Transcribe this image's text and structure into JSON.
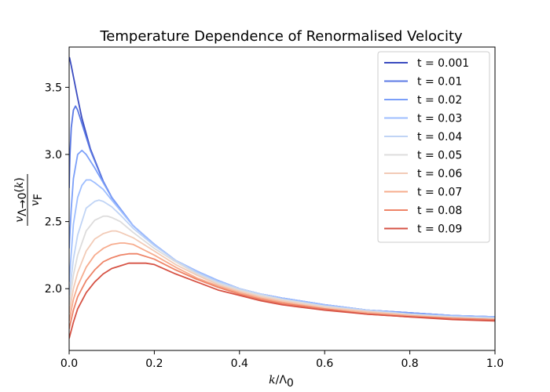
{
  "chart_data": {
    "type": "line",
    "title": "Temperature Dependence of Renormalised Velocity",
    "xlabel": "k/Λ₀",
    "ylabel": "v_{Λ→0}(k) / v_F",
    "xlim": [
      0.0,
      1.0
    ],
    "ylim": [
      1.54,
      3.8
    ],
    "xticks": [
      0.0,
      0.2,
      0.4,
      0.6,
      0.8,
      1.0
    ],
    "xtick_labels": [
      "0.0",
      "0.2",
      "0.4",
      "0.6",
      "0.8",
      "1.0"
    ],
    "yticks": [
      2.0,
      2.5,
      3.0,
      3.5
    ],
    "ytick_labels": [
      "2.0",
      "2.5",
      "3.0",
      "3.5"
    ],
    "grid": false,
    "legend_position": "top-right",
    "series": [
      {
        "name": "t = 0.001",
        "color": "#3b4cc0",
        "x": [
          0.0,
          0.001,
          0.005,
          0.01,
          0.02,
          0.03,
          0.05,
          0.08,
          0.1,
          0.15,
          0.2,
          0.25,
          0.3,
          0.35,
          0.4,
          0.45,
          0.5,
          0.6,
          0.7,
          0.8,
          0.9,
          1.0
        ],
        "y": [
          3.72,
          3.72,
          3.66,
          3.58,
          3.42,
          3.27,
          3.04,
          2.8,
          2.68,
          2.47,
          2.33,
          2.21,
          2.13,
          2.06,
          2.0,
          1.96,
          1.93,
          1.88,
          1.84,
          1.82,
          1.8,
          1.79
        ]
      },
      {
        "name": "t = 0.01",
        "color": "#5a78e4",
        "x": [
          0.0,
          0.002,
          0.005,
          0.01,
          0.015,
          0.02,
          0.025,
          0.03,
          0.05,
          0.08,
          0.1,
          0.15,
          0.2,
          0.25,
          0.3,
          0.35,
          0.4,
          0.45,
          0.5,
          0.6,
          0.7,
          0.8,
          0.9,
          1.0
        ],
        "y": [
          2.75,
          3.0,
          3.2,
          3.33,
          3.36,
          3.33,
          3.28,
          3.23,
          3.03,
          2.8,
          2.68,
          2.47,
          2.33,
          2.21,
          2.13,
          2.06,
          2.0,
          1.96,
          1.93,
          1.88,
          1.84,
          1.82,
          1.8,
          1.79
        ]
      },
      {
        "name": "t = 0.02",
        "color": "#7b9ff9",
        "x": [
          0.0,
          0.005,
          0.01,
          0.02,
          0.03,
          0.04,
          0.05,
          0.06,
          0.08,
          0.1,
          0.15,
          0.2,
          0.25,
          0.3,
          0.35,
          0.4,
          0.45,
          0.5,
          0.6,
          0.7,
          0.8,
          0.9,
          1.0
        ],
        "y": [
          2.3,
          2.6,
          2.82,
          3.0,
          3.03,
          3.0,
          2.95,
          2.9,
          2.79,
          2.68,
          2.47,
          2.33,
          2.21,
          2.13,
          2.06,
          2.0,
          1.96,
          1.93,
          1.88,
          1.84,
          1.82,
          1.8,
          1.79
        ]
      },
      {
        "name": "t = 0.03",
        "color": "#9ebeff",
        "x": [
          0.0,
          0.01,
          0.02,
          0.03,
          0.04,
          0.05,
          0.06,
          0.08,
          0.1,
          0.15,
          0.2,
          0.25,
          0.3,
          0.35,
          0.4,
          0.45,
          0.5,
          0.6,
          0.7,
          0.8,
          0.9,
          1.0
        ],
        "y": [
          2.05,
          2.48,
          2.68,
          2.77,
          2.81,
          2.81,
          2.79,
          2.74,
          2.66,
          2.47,
          2.33,
          2.21,
          2.13,
          2.06,
          2.0,
          1.96,
          1.93,
          1.88,
          1.84,
          1.81,
          1.8,
          1.79
        ]
      },
      {
        "name": "t = 0.04",
        "color": "#c0d4f5",
        "x": [
          0.0,
          0.01,
          0.02,
          0.04,
          0.06,
          0.07,
          0.08,
          0.1,
          0.12,
          0.15,
          0.2,
          0.25,
          0.3,
          0.35,
          0.4,
          0.45,
          0.5,
          0.6,
          0.7,
          0.8,
          0.9,
          1.0
        ],
        "y": [
          1.95,
          2.22,
          2.4,
          2.6,
          2.65,
          2.66,
          2.65,
          2.61,
          2.55,
          2.45,
          2.32,
          2.21,
          2.12,
          2.05,
          2.0,
          1.96,
          1.92,
          1.87,
          1.84,
          1.81,
          1.79,
          1.78
        ]
      },
      {
        "name": "t = 0.05",
        "color": "#dddcdc",
        "x": [
          0.0,
          0.01,
          0.02,
          0.04,
          0.06,
          0.08,
          0.09,
          0.1,
          0.12,
          0.15,
          0.2,
          0.25,
          0.3,
          0.35,
          0.4,
          0.45,
          0.5,
          0.6,
          0.7,
          0.8,
          0.9,
          1.0
        ],
        "y": [
          1.88,
          2.1,
          2.25,
          2.43,
          2.51,
          2.54,
          2.54,
          2.53,
          2.5,
          2.42,
          2.3,
          2.2,
          2.11,
          2.04,
          1.99,
          1.95,
          1.92,
          1.87,
          1.83,
          1.81,
          1.79,
          1.78
        ]
      },
      {
        "name": "t = 0.06",
        "color": "#f2cbb7",
        "x": [
          0.0,
          0.01,
          0.02,
          0.04,
          0.06,
          0.08,
          0.1,
          0.11,
          0.12,
          0.15,
          0.2,
          0.25,
          0.3,
          0.35,
          0.4,
          0.45,
          0.5,
          0.6,
          0.7,
          0.8,
          0.9,
          1.0
        ],
        "y": [
          1.82,
          2.0,
          2.12,
          2.28,
          2.37,
          2.41,
          2.43,
          2.43,
          2.42,
          2.38,
          2.28,
          2.18,
          2.1,
          2.03,
          1.98,
          1.94,
          1.91,
          1.86,
          1.83,
          1.8,
          1.78,
          1.77
        ]
      },
      {
        "name": "t = 0.07",
        "color": "#f7ac8e",
        "x": [
          0.0,
          0.01,
          0.02,
          0.04,
          0.06,
          0.08,
          0.1,
          0.12,
          0.13,
          0.15,
          0.2,
          0.25,
          0.3,
          0.35,
          0.4,
          0.45,
          0.5,
          0.6,
          0.7,
          0.8,
          0.9,
          1.0
        ],
        "y": [
          1.76,
          1.92,
          2.02,
          2.16,
          2.25,
          2.3,
          2.33,
          2.34,
          2.34,
          2.33,
          2.25,
          2.16,
          2.08,
          2.02,
          1.97,
          1.93,
          1.9,
          1.85,
          1.82,
          1.8,
          1.78,
          1.77
        ]
      },
      {
        "name": "t = 0.08",
        "color": "#ee8468",
        "x": [
          0.0,
          0.01,
          0.02,
          0.04,
          0.06,
          0.08,
          0.1,
          0.12,
          0.14,
          0.16,
          0.2,
          0.25,
          0.3,
          0.35,
          0.4,
          0.45,
          0.5,
          0.6,
          0.7,
          0.8,
          0.9,
          1.0
        ],
        "y": [
          1.7,
          1.84,
          1.94,
          2.06,
          2.14,
          2.2,
          2.23,
          2.25,
          2.26,
          2.26,
          2.22,
          2.14,
          2.07,
          2.01,
          1.96,
          1.92,
          1.89,
          1.85,
          1.81,
          1.79,
          1.78,
          1.77
        ]
      },
      {
        "name": "t = 0.09",
        "color": "#d65244",
        "x": [
          0.0,
          0.01,
          0.02,
          0.04,
          0.06,
          0.08,
          0.1,
          0.12,
          0.14,
          0.16,
          0.18,
          0.2,
          0.25,
          0.3,
          0.35,
          0.4,
          0.45,
          0.5,
          0.6,
          0.7,
          0.8,
          0.9,
          1.0
        ],
        "y": [
          1.63,
          1.75,
          1.85,
          1.97,
          2.05,
          2.11,
          2.15,
          2.17,
          2.19,
          2.19,
          2.19,
          2.18,
          2.11,
          2.05,
          1.99,
          1.95,
          1.91,
          1.88,
          1.84,
          1.81,
          1.79,
          1.77,
          1.76
        ]
      }
    ]
  }
}
